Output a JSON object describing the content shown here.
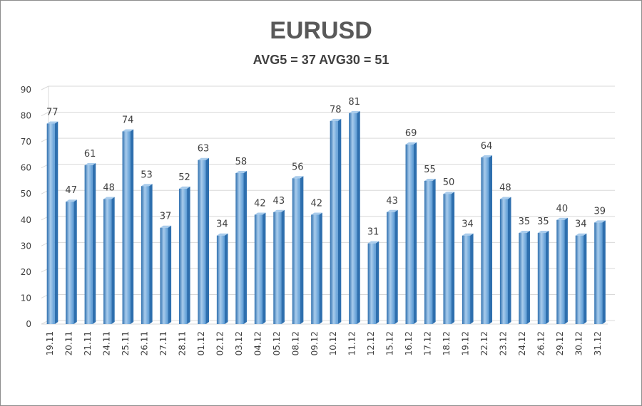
{
  "chart_data": {
    "type": "bar",
    "title": "EURUSD",
    "subtitle": "AVG5 = 37 AVG30 = 51",
    "categories": [
      "19.11",
      "20.11",
      "21.11",
      "24.11",
      "25.11",
      "26.11",
      "27.11",
      "28.11",
      "01.12",
      "02.12",
      "03.12",
      "04.12",
      "05.12",
      "08.12",
      "09.12",
      "10.12",
      "11.12",
      "12.12",
      "15.12",
      "16.12",
      "17.12",
      "18.12",
      "19.12",
      "22.12",
      "23.12",
      "24.12",
      "26.12",
      "29.12",
      "30.12",
      "31.12"
    ],
    "values": [
      77,
      47,
      61,
      48,
      74,
      53,
      37,
      52,
      63,
      34,
      58,
      42,
      43,
      56,
      42,
      78,
      81,
      31,
      43,
      69,
      55,
      50,
      34,
      64,
      48,
      35,
      35,
      40,
      34,
      39
    ],
    "ylim": [
      0,
      90
    ],
    "yticks": [
      0,
      10,
      20,
      30,
      40,
      50,
      60,
      70,
      80,
      90
    ],
    "grid": true,
    "legend": "none",
    "bar_color": "#5b9bd5",
    "bar_dark": "#2e6fae",
    "bar_light": "#a9ccec"
  }
}
